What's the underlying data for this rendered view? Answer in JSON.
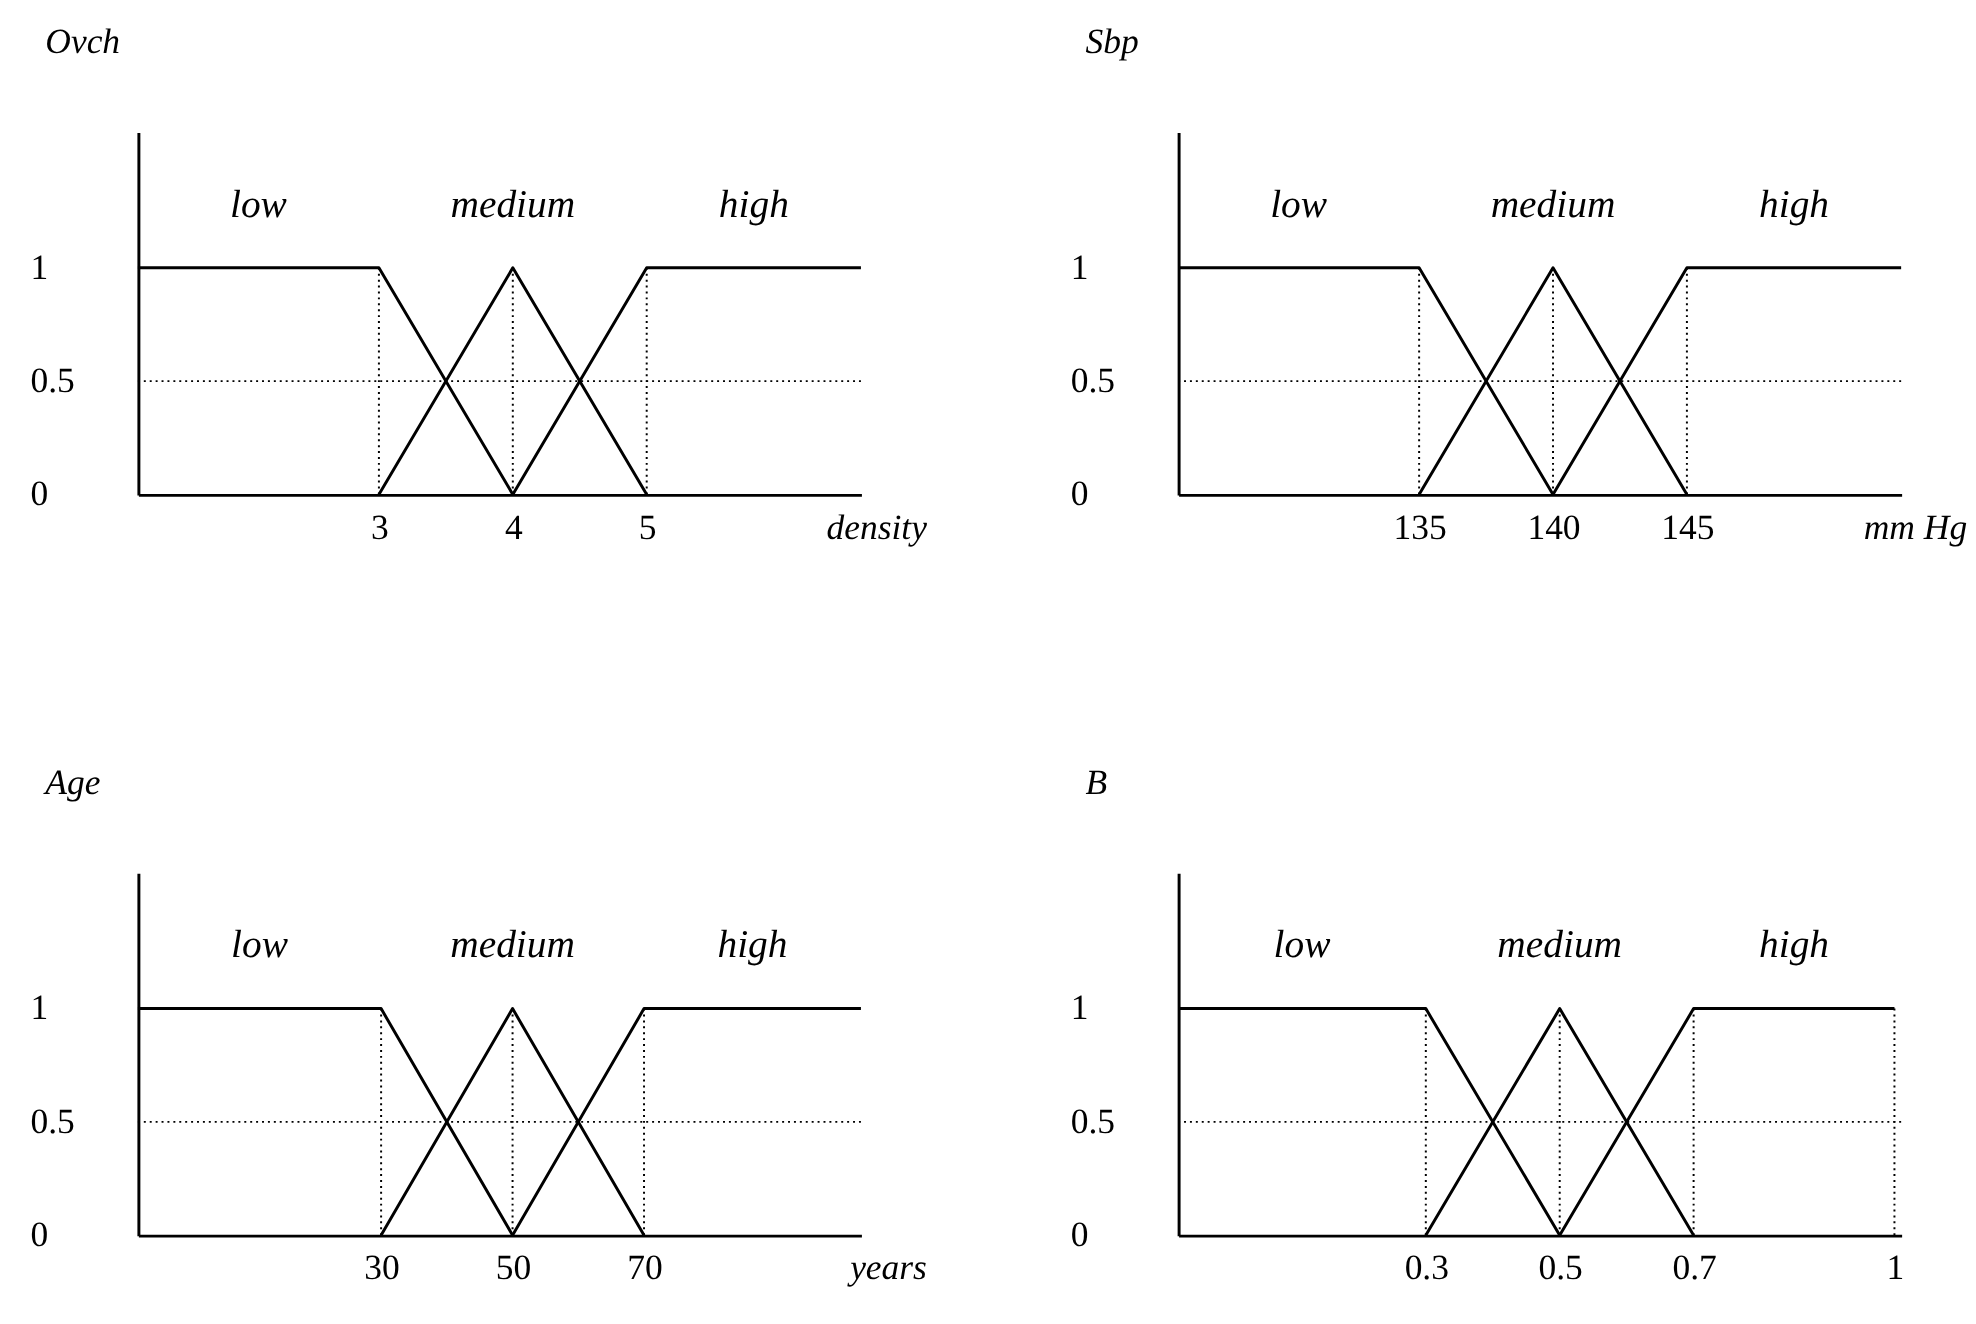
{
  "chart_data": [
    {
      "type": "line",
      "title": "Ovch",
      "xlabel": "density",
      "xlim": [
        1.2,
        6.6
      ],
      "xticks": [
        3,
        4,
        5
      ],
      "ylim": [
        0,
        1.6
      ],
      "yticks": [
        0,
        0.5,
        1
      ],
      "legend": false,
      "grid": false,
      "marker": "none",
      "line_style": "solid",
      "series": [
        {
          "name": "low",
          "color": "#000000",
          "x": [
            1.2,
            3,
            4
          ],
          "values": [
            1,
            1,
            0
          ]
        },
        {
          "name": "medium",
          "color": "#000000",
          "x": [
            3,
            4,
            5
          ],
          "values": [
            0,
            1,
            0
          ]
        },
        {
          "name": "high",
          "color": "#000000",
          "x": [
            4,
            5,
            6.6
          ],
          "values": [
            0,
            1,
            1
          ]
        }
      ],
      "ref_lines": [
        {
          "axis": "y",
          "value": 0.5,
          "color": "#000000",
          "line_style": "dotted"
        },
        {
          "axis": "x",
          "value": 3,
          "color": "#000000",
          "line_style": "dotted"
        },
        {
          "axis": "x",
          "value": 4,
          "color": "#000000",
          "line_style": "dotted"
        },
        {
          "axis": "x",
          "value": 5,
          "color": "#000000",
          "line_style": "dotted"
        }
      ]
    },
    {
      "type": "line",
      "title": "Sbp",
      "xlabel": "mm Hg",
      "xlim": [
        126,
        153
      ],
      "xticks": [
        135,
        140,
        145
      ],
      "ylim": [
        0,
        1.6
      ],
      "yticks": [
        0,
        0.5,
        1
      ],
      "legend": false,
      "grid": false,
      "marker": "none",
      "line_style": "solid",
      "series": [
        {
          "name": "low",
          "color": "#000000",
          "x": [
            126,
            135,
            140
          ],
          "values": [
            1,
            1,
            0
          ]
        },
        {
          "name": "medium",
          "color": "#000000",
          "x": [
            135,
            140,
            145
          ],
          "values": [
            0,
            1,
            0
          ]
        },
        {
          "name": "high",
          "color": "#000000",
          "x": [
            140,
            145,
            153
          ],
          "values": [
            0,
            1,
            1
          ]
        }
      ],
      "ref_lines": [
        {
          "axis": "y",
          "value": 0.5,
          "color": "#000000",
          "line_style": "dotted"
        },
        {
          "axis": "x",
          "value": 135,
          "color": "#000000",
          "line_style": "dotted"
        },
        {
          "axis": "x",
          "value": 140,
          "color": "#000000",
          "line_style": "dotted"
        },
        {
          "axis": "x",
          "value": 145,
          "color": "#000000",
          "line_style": "dotted"
        }
      ]
    },
    {
      "type": "line",
      "title": "Age",
      "xlabel": "years",
      "xlim": [
        -7,
        103
      ],
      "xticks": [
        30,
        50,
        70
      ],
      "ylim": [
        0,
        1.6
      ],
      "yticks": [
        0,
        0.5,
        1
      ],
      "legend": false,
      "grid": false,
      "marker": "none",
      "line_style": "solid",
      "series": [
        {
          "name": "low",
          "color": "#000000",
          "x": [
            -7,
            30,
            50
          ],
          "values": [
            1,
            1,
            0
          ]
        },
        {
          "name": "medium",
          "color": "#000000",
          "x": [
            30,
            50,
            70
          ],
          "values": [
            0,
            1,
            0
          ]
        },
        {
          "name": "high",
          "color": "#000000",
          "x": [
            50,
            70,
            103
          ],
          "values": [
            0,
            1,
            1
          ]
        }
      ],
      "ref_lines": [
        {
          "axis": "y",
          "value": 0.5,
          "color": "#000000",
          "line_style": "dotted"
        },
        {
          "axis": "x",
          "value": 30,
          "color": "#000000",
          "line_style": "dotted"
        },
        {
          "axis": "x",
          "value": 50,
          "color": "#000000",
          "line_style": "dotted"
        },
        {
          "axis": "x",
          "value": 70,
          "color": "#000000",
          "line_style": "dotted"
        }
      ]
    },
    {
      "type": "line",
      "title": "B",
      "xlim": [
        -0.07,
        1.01
      ],
      "xticks": [
        0.3,
        0.5,
        0.7,
        1
      ],
      "ylim": [
        0,
        1.6
      ],
      "yticks": [
        0,
        0.5,
        1
      ],
      "legend": false,
      "grid": false,
      "marker": "none",
      "line_style": "solid",
      "series": [
        {
          "name": "low",
          "color": "#000000",
          "x": [
            -0.07,
            0.3,
            0.5
          ],
          "values": [
            1,
            1,
            0
          ]
        },
        {
          "name": "medium",
          "color": "#000000",
          "x": [
            0.3,
            0.5,
            0.7
          ],
          "values": [
            0,
            1,
            0
          ]
        },
        {
          "name": "high",
          "color": "#000000",
          "x": [
            0.5,
            0.7,
            1
          ],
          "values": [
            0,
            1,
            1
          ]
        }
      ],
      "ref_lines": [
        {
          "axis": "y",
          "value": 0.5,
          "color": "#000000",
          "line_style": "dotted"
        },
        {
          "axis": "x",
          "value": 0.3,
          "color": "#000000",
          "line_style": "dotted"
        },
        {
          "axis": "x",
          "value": 0.5,
          "color": "#000000",
          "line_style": "dotted"
        },
        {
          "axis": "x",
          "value": 0.7,
          "color": "#000000",
          "line_style": "dotted"
        },
        {
          "axis": "x",
          "value": 1,
          "color": "#000000",
          "line_style": "dotted"
        }
      ]
    }
  ]
}
